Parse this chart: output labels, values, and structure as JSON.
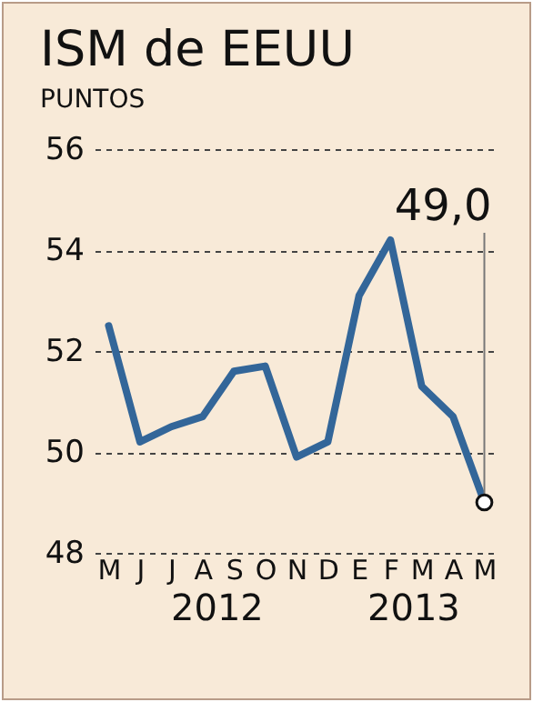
{
  "chart_data": {
    "type": "line",
    "title": "ISM de EEUU",
    "subtitle": "PUNTOS",
    "categories": [
      "M",
      "J",
      "J",
      "A",
      "S",
      "O",
      "N",
      "D",
      "E",
      "F",
      "M",
      "A",
      "M"
    ],
    "series": [
      {
        "color": "#336699",
        "values": [
          52.5,
          50.2,
          50.5,
          50.7,
          51.6,
          51.7,
          49.9,
          50.2,
          53.1,
          54.2,
          51.3,
          50.7,
          49.0
        ],
        "value_labels": [
          null,
          null,
          null,
          null,
          null,
          null,
          null,
          null,
          null,
          null,
          null,
          null,
          "49,0"
        ]
      }
    ],
    "ylim": [
      48,
      56
    ],
    "yticks": [
      48,
      50,
      52,
      54,
      56
    ],
    "grid": "y",
    "marker": "none",
    "line_style": "solid",
    "annotations": [
      "2012",
      "2013"
    ]
  }
}
